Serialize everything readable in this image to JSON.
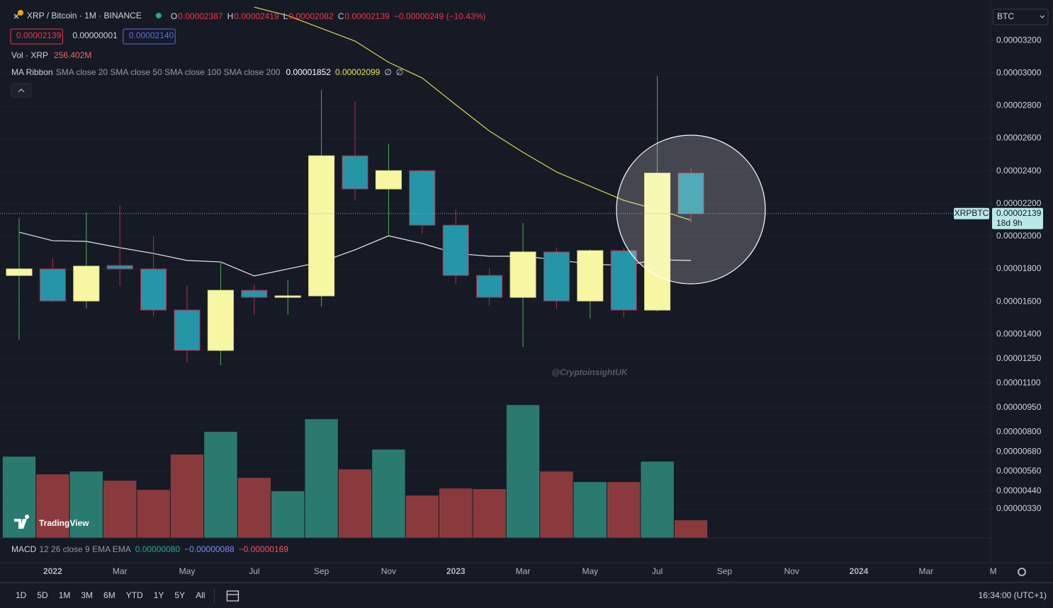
{
  "header": {
    "symbol": "XRP / Bitcoin · 1M · BINANCE",
    "ohlc": [
      {
        "label": "O",
        "value": "0.00002387"
      },
      {
        "label": "H",
        "value": "0.00002419"
      },
      {
        "label": "L",
        "value": "0.00002082"
      },
      {
        "label": "C",
        "value": "0.00002139"
      }
    ],
    "change": "−0.00000249 (−10.43%)",
    "sell": "0.00002139",
    "spread": "0.00000001",
    "buy": "0.00002140"
  },
  "indicators": {
    "volume": {
      "name": "Vol · XRP",
      "value": "256.402M"
    },
    "ma_ribbon": {
      "name": "MA Ribbon",
      "params": "SMA close 20 SMA close 50 SMA close 100 SMA close 200",
      "values": [
        "0.00001852",
        "0.00002099",
        "∅",
        "∅"
      ]
    },
    "macd": {
      "name": "MACD",
      "params": "12 26 close 9 EMA EMA",
      "values": [
        "0.00000080",
        "−0.00000088",
        "−0.00000169"
      ]
    }
  },
  "currency": "BTC",
  "price_label": {
    "symbol": "XRPBTC",
    "price": "0.00002139",
    "countdown": "18d 9h"
  },
  "watermark": "@CryptoinsightUK",
  "logo": "TradingView",
  "toolbar": {
    "ranges": [
      "1D",
      "5D",
      "1M",
      "3M",
      "6M",
      "YTD",
      "1Y",
      "5Y",
      "All"
    ],
    "clock": "16:34:00 (UTC+1)"
  },
  "chart_data": {
    "type": "candlestick",
    "categories": [
      null,
      "2022",
      null,
      "Mar",
      null,
      "May",
      null,
      "Jul",
      null,
      "Sep",
      null,
      "Nov",
      null,
      "2023",
      null,
      "Mar",
      null,
      "May",
      null,
      "Jul",
      null
    ],
    "future_axis_labels": [
      "Sep",
      "Nov",
      "2024",
      "Mar",
      "M"
    ],
    "open": [
      1.76e-05,
      1.8e-05,
      1.604e-05,
      1.821e-05,
      1.8e-05,
      1.548e-05,
      1.301e-05,
      1.669e-05,
      1.626e-05,
      1.635e-05,
      2.493e-05,
      2.29e-05,
      2.402e-05,
      2.068e-05,
      1.76e-05,
      1.626e-05,
      1.904e-05,
      1.604e-05,
      1.912e-05,
      1.548e-05,
      2.387e-05
    ],
    "high": [
      2.112e-05,
      1.865e-05,
      2.146e-05,
      2.19e-05,
      2.003e-05,
      1.7e-05,
      1.843e-05,
      1.704e-05,
      1.734e-05,
      2.897e-05,
      2.827e-05,
      2.567e-05,
      2.41e-05,
      2.164e-05,
      1.804e-05,
      2.081e-05,
      1.93e-05,
      1.92e-05,
      1.93e-05,
      2.983e-05,
      2.419e-05
    ],
    "low": [
      1.366e-05,
      1.596e-05,
      1.557e-05,
      1.695e-05,
      1.509e-05,
      1.227e-05,
      1.21e-05,
      1.518e-05,
      1.518e-05,
      1.57e-05,
      2.22e-05,
      2.003e-05,
      2.016e-05,
      1.708e-05,
      1.574e-05,
      1.322e-05,
      1.557e-05,
      1.496e-05,
      1.505e-05,
      1.539e-05,
      2.082e-05
    ],
    "close": [
      1.8e-05,
      1.604e-05,
      1.817e-05,
      1.8e-05,
      1.548e-05,
      1.301e-05,
      1.669e-05,
      1.626e-05,
      1.635e-05,
      2.493e-05,
      2.29e-05,
      2.402e-05,
      2.068e-05,
      1.76e-05,
      1.626e-05,
      1.904e-05,
      1.604e-05,
      1.912e-05,
      1.548e-05,
      2.387e-05,
      2.139e-05
    ],
    "up_color": "#f7f7a3",
    "up_wick_color": "#4caf50",
    "down_color": "#2596a8",
    "down_wick_color": "#c2284a",
    "lines": [
      {
        "color": "#e8e8e8",
        "values": [
          2.025e-05,
          1.973e-05,
          1.969e-05,
          1.93e-05,
          1.895e-05,
          1.852e-05,
          1.843e-05,
          1.757e-05,
          1.8e-05,
          1.843e-05,
          1.917e-05,
          2.003e-05,
          1.956e-05,
          1.895e-05,
          1.878e-05,
          1.878e-05,
          1.856e-05,
          1.83e-05,
          1.821e-05,
          1.856e-05,
          1.852e-05
        ]
      },
      {
        "color": "#d8d84a",
        "values": [
          null,
          null,
          null,
          null,
          null,
          null,
          null,
          3.404e-05,
          3.352e-05,
          3.274e-05,
          3.196e-05,
          3.066e-05,
          2.97e-05,
          2.806e-05,
          2.645e-05,
          2.515e-05,
          2.394e-05,
          2.307e-05,
          2.22e-05,
          2.164e-05,
          2.099e-05
        ]
      }
    ],
    "volume": {
      "values": [
        1180,
        923,
        964,
        831,
        698,
        1211,
        1539,
        872,
        677,
        1724,
        995,
        1283,
        616,
        718,
        708,
        1929,
        964,
        811,
        811,
        1108,
        256.402
      ],
      "lim": [
        0,
        3000
      ],
      "up_color": "#2b7a6f",
      "down_color": "#8a3a3c"
    },
    "ylim": [
      1.52e-06,
      3.413e-05
    ],
    "yticks": [
      {
        "value": 3.2e-05,
        "label": "0.00003200"
      },
      {
        "value": 3e-05,
        "label": "0.00003000"
      },
      {
        "value": 2.8e-05,
        "label": "0.00002800"
      },
      {
        "value": 2.6e-05,
        "label": "0.00002600"
      },
      {
        "value": 2.4e-05,
        "label": "0.00002400"
      },
      {
        "value": 2.2e-05,
        "label": "0.00002200"
      },
      {
        "value": 2e-05,
        "label": "0.00002000"
      },
      {
        "value": 1.8e-05,
        "label": "0.00001800"
      },
      {
        "value": 1.6e-05,
        "label": "0.00001600"
      },
      {
        "value": 1.4e-05,
        "label": "0.00001400"
      },
      {
        "value": 1.25e-05,
        "label": "0.00001250"
      },
      {
        "value": 1.1e-05,
        "label": "0.00001100"
      },
      {
        "value": 9.5e-06,
        "label": "0.00000950"
      },
      {
        "value": 8e-06,
        "label": "0.00000800"
      },
      {
        "value": 6.8e-06,
        "label": "0.00000680"
      },
      {
        "value": 5.6e-06,
        "label": "0.00000560"
      },
      {
        "value": 4.4e-06,
        "label": "0.00000440"
      },
      {
        "value": 3.3e-06,
        "label": "0.00000330"
      }
    ],
    "grid": true
  }
}
